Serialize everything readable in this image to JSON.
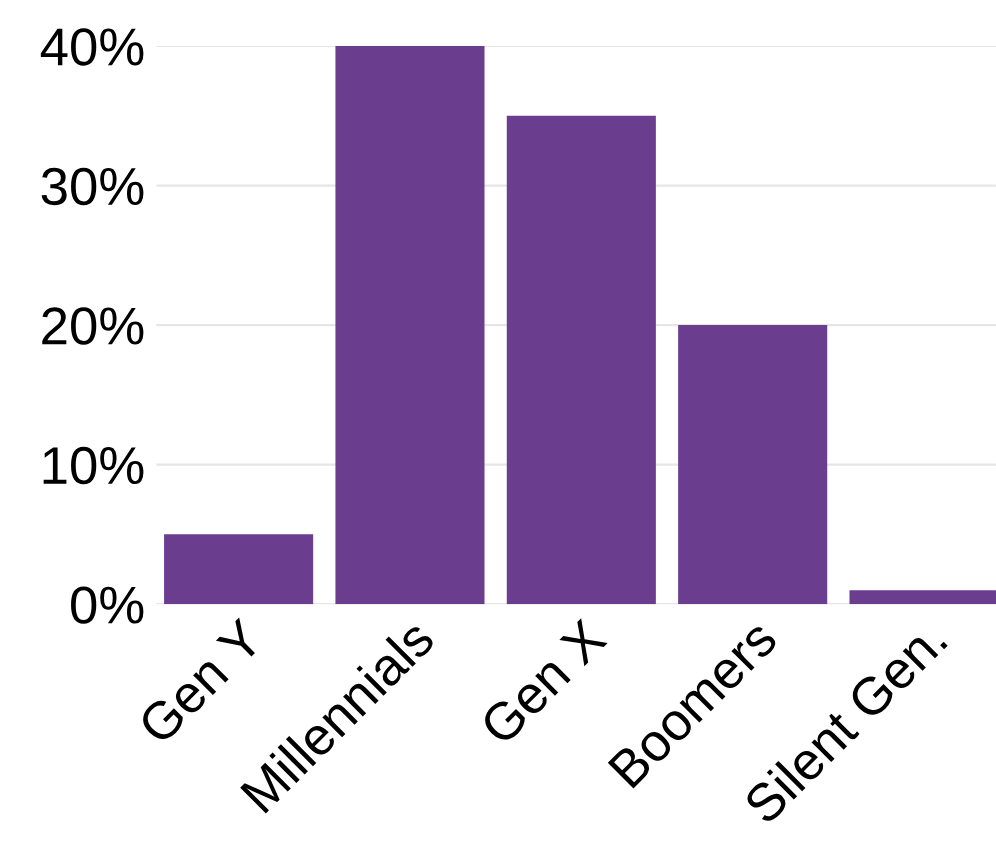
{
  "chart_data": {
    "type": "bar",
    "categories": [
      "Gen Y",
      "Millennials",
      "Gen X",
      "Boomers",
      "Silent Gen."
    ],
    "values": [
      5,
      40,
      35,
      20,
      1
    ],
    "color": "#6a3d8f",
    "ylim": [
      0,
      40
    ],
    "yticks": [
      {
        "value": 0,
        "label": "0%"
      },
      {
        "value": 10,
        "label": "10%"
      },
      {
        "value": 20,
        "label": "20%"
      },
      {
        "value": 30,
        "label": "30%"
      },
      {
        "value": 40,
        "label": "40%"
      }
    ],
    "grid": "y",
    "legend": false
  }
}
